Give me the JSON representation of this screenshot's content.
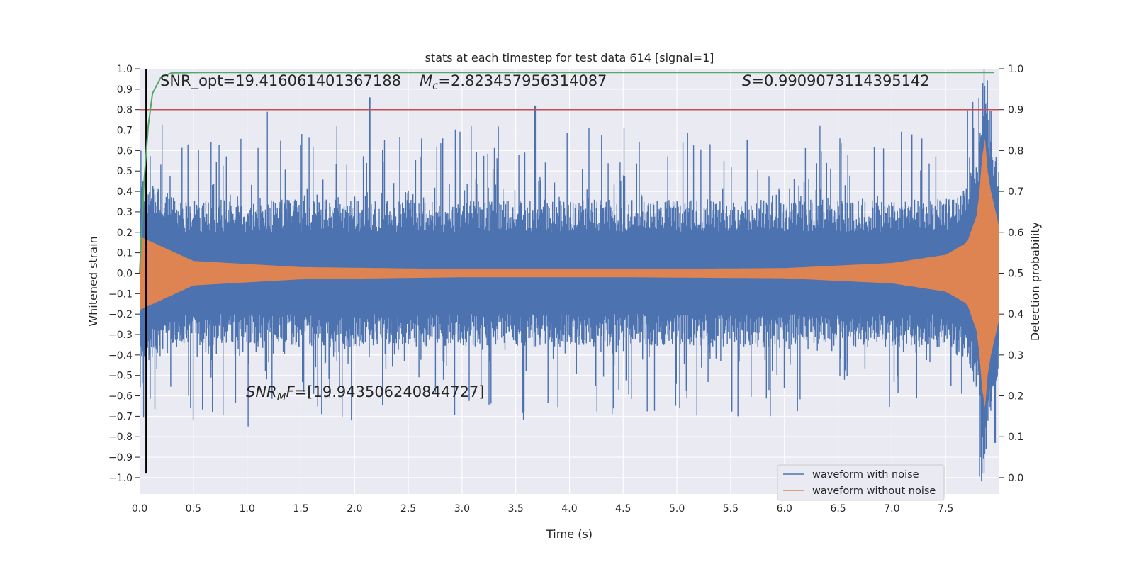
{
  "chart_data": {
    "type": "line",
    "title": "stats at each timestep for test data 614 [signal=1]",
    "xlabel": "Time (s)",
    "ylabel": "Whitened strain",
    "y2label": "Detection probability",
    "xlim": [
      0.0,
      8.0
    ],
    "ylim": [
      -1.08,
      1.0
    ],
    "y2lim": [
      -0.04,
      1.0
    ],
    "xticks": [
      "0.0",
      "0.5",
      "1.0",
      "1.5",
      "2.0",
      "2.5",
      "3.0",
      "3.5",
      "4.0",
      "4.5",
      "5.0",
      "5.5",
      "6.0",
      "6.5",
      "7.0",
      "7.5"
    ],
    "yticks": [
      "1.0",
      "0.9",
      "0.8",
      "0.7",
      "0.6",
      "0.5",
      "0.4",
      "0.3",
      "0.2",
      "0.1",
      "0.0",
      "−0.1",
      "−0.2",
      "−0.3",
      "−0.4",
      "−0.5",
      "−0.6",
      "−0.7",
      "−0.8",
      "−0.9",
      "−1.0"
    ],
    "y2ticks": [
      "1.0",
      "0.9",
      "0.8",
      "0.7",
      "0.6",
      "0.5",
      "0.4",
      "0.3",
      "0.2",
      "0.1",
      "0.0"
    ],
    "grid": true,
    "legend_position": "lower-right",
    "annotations": {
      "snr_opt": "SNR_opt=19.416061401367188",
      "mc_label": "M",
      "mc_sub": "c",
      "mc_value": "=2.823457956314087",
      "s_label": "S",
      "s_value": "=0.9909073114395142",
      "snr_mf_label": "SNR",
      "snr_mf_sub": "M",
      "snr_mf_f": "F",
      "snr_mf_value": "=[19.943506240844727]"
    },
    "series": [
      {
        "name": "waveform with noise",
        "color": "#4c72b0",
        "kind": "noisy-strain",
        "peaks_upper": [
          [
            0.01,
            0.6
          ],
          [
            0.45,
            0.63
          ],
          [
            1.19,
            0.79
          ],
          [
            2.14,
            0.86
          ],
          [
            3.68,
            0.82
          ],
          [
            6.33,
            0.72
          ],
          [
            7.86,
            1.0
          ]
        ],
        "peaks_lower": [
          [
            0.5,
            -0.72
          ],
          [
            1.01,
            -0.75
          ],
          [
            1.97,
            -0.72
          ],
          [
            5.57,
            -0.7
          ],
          [
            7.84,
            -0.98
          ],
          [
            7.96,
            -0.83
          ]
        ]
      },
      {
        "name": "waveform without noise",
        "color": "#dd8452",
        "kind": "chirp-envelope",
        "envelope": [
          [
            0.0,
            0.18
          ],
          [
            0.5,
            0.06
          ],
          [
            1.5,
            0.03
          ],
          [
            3.0,
            0.02
          ],
          [
            4.5,
            0.02
          ],
          [
            6.0,
            0.025
          ],
          [
            7.0,
            0.05
          ],
          [
            7.5,
            0.09
          ],
          [
            7.7,
            0.15
          ],
          [
            7.8,
            0.3
          ],
          [
            7.86,
            0.7
          ],
          [
            7.9,
            0.45
          ],
          [
            8.0,
            0.22
          ]
        ]
      },
      {
        "name": "",
        "color": "#55a868",
        "axis": "right",
        "kind": "detection-probability",
        "points": [
          [
            0.0,
            0.5
          ],
          [
            0.04,
            0.72
          ],
          [
            0.08,
            0.86
          ],
          [
            0.12,
            0.94
          ],
          [
            0.2,
            0.98
          ],
          [
            0.3,
            0.99
          ],
          [
            0.6,
            0.991
          ],
          [
            7.95,
            0.991
          ]
        ]
      }
    ],
    "hlines": [
      {
        "axis": "left",
        "y": 0.8,
        "color": "#c44e52"
      }
    ],
    "vlines": [
      {
        "x": 0.06,
        "y_from": -0.98,
        "y_to": 1.0,
        "color": "#000000"
      }
    ]
  }
}
